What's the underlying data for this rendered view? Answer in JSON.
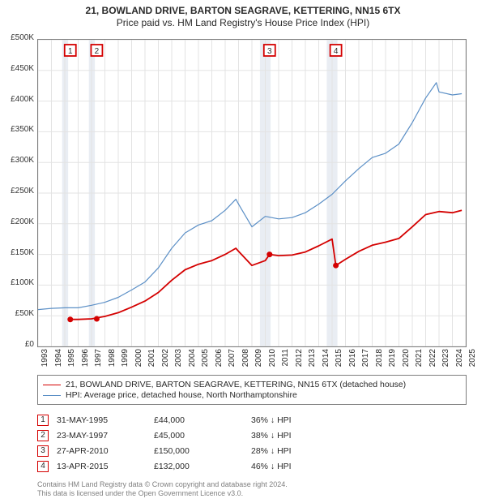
{
  "title": {
    "main": "21, BOWLAND DRIVE, BARTON SEAGRAVE, KETTERING, NN15 6TX",
    "sub": "Price paid vs. HM Land Registry's House Price Index (HPI)"
  },
  "chart": {
    "type": "line",
    "background_color": "#ffffff",
    "grid_color": "#e3e3e3",
    "axis_color": "#7d7d7d",
    "y": {
      "min": 0,
      "max": 500000,
      "step": 50000,
      "currency_symbol": "£",
      "labels": [
        "£0",
        "£50K",
        "£100K",
        "£150K",
        "£200K",
        "£250K",
        "£300K",
        "£350K",
        "£400K",
        "£450K",
        "£500K"
      ]
    },
    "x": {
      "min": 1993,
      "max": 2025,
      "step": 1
    },
    "shade_bands": [
      {
        "from": 1994.8,
        "to": 1995.25,
        "color": "#e9edf3"
      },
      {
        "from": 1996.8,
        "to": 1997.25,
        "color": "#e9edf3"
      },
      {
        "from": 2009.6,
        "to": 2010.4,
        "color": "#e9edf3"
      },
      {
        "from": 2014.6,
        "to": 2015.4,
        "color": "#e9edf3"
      }
    ],
    "series": [
      {
        "id": "hpi",
        "label": "HPI: Average price, detached house, North Northamptonshire",
        "color": "#5b8fc6",
        "line_width": 1.2,
        "points": [
          [
            1993.0,
            60000
          ],
          [
            1994.0,
            62000
          ],
          [
            1995.0,
            63000
          ],
          [
            1996.0,
            63000
          ],
          [
            1997.0,
            67000
          ],
          [
            1998.0,
            72000
          ],
          [
            1999.0,
            80000
          ],
          [
            2000.0,
            92000
          ],
          [
            2001.0,
            105000
          ],
          [
            2002.0,
            128000
          ],
          [
            2003.0,
            160000
          ],
          [
            2004.0,
            185000
          ],
          [
            2005.0,
            198000
          ],
          [
            2006.0,
            205000
          ],
          [
            2007.0,
            222000
          ],
          [
            2007.8,
            240000
          ],
          [
            2008.0,
            232000
          ],
          [
            2009.0,
            195000
          ],
          [
            2010.0,
            212000
          ],
          [
            2011.0,
            208000
          ],
          [
            2012.0,
            210000
          ],
          [
            2013.0,
            218000
          ],
          [
            2014.0,
            232000
          ],
          [
            2015.0,
            248000
          ],
          [
            2016.0,
            270000
          ],
          [
            2017.0,
            290000
          ],
          [
            2018.0,
            308000
          ],
          [
            2019.0,
            315000
          ],
          [
            2020.0,
            330000
          ],
          [
            2021.0,
            365000
          ],
          [
            2022.0,
            405000
          ],
          [
            2022.8,
            430000
          ],
          [
            2023.0,
            415000
          ],
          [
            2024.0,
            410000
          ],
          [
            2024.7,
            412000
          ]
        ]
      },
      {
        "id": "subject",
        "label": "21, BOWLAND DRIVE, BARTON SEAGRAVE, KETTERING, NN15 6TX (detached house)",
        "color": "#d40000",
        "line_width": 1.8,
        "points": [
          [
            1995.41,
            44000
          ],
          [
            1996.0,
            44000
          ],
          [
            1997.0,
            45000
          ],
          [
            1998.0,
            49000
          ],
          [
            1999.0,
            55000
          ],
          [
            2000.0,
            64000
          ],
          [
            2001.0,
            74000
          ],
          [
            2002.0,
            88000
          ],
          [
            2003.0,
            108000
          ],
          [
            2004.0,
            125000
          ],
          [
            2005.0,
            134000
          ],
          [
            2006.0,
            140000
          ],
          [
            2007.0,
            150000
          ],
          [
            2007.8,
            160000
          ],
          [
            2008.0,
            155000
          ],
          [
            2009.0,
            132000
          ],
          [
            2010.0,
            140000
          ],
          [
            2010.32,
            150000
          ],
          [
            2011.0,
            148000
          ],
          [
            2012.0,
            149000
          ],
          [
            2013.0,
            154000
          ],
          [
            2014.0,
            164000
          ],
          [
            2015.0,
            175000
          ],
          [
            2015.28,
            132000
          ],
          [
            2016.0,
            142000
          ],
          [
            2017.0,
            155000
          ],
          [
            2018.0,
            165000
          ],
          [
            2019.0,
            170000
          ],
          [
            2020.0,
            176000
          ],
          [
            2021.0,
            195000
          ],
          [
            2022.0,
            215000
          ],
          [
            2023.0,
            220000
          ],
          [
            2024.0,
            218000
          ],
          [
            2024.7,
            222000
          ]
        ]
      }
    ],
    "sale_markers": [
      {
        "n": 1,
        "year": 1995.41,
        "price": 44000,
        "color": "#d40000"
      },
      {
        "n": 2,
        "year": 1997.39,
        "price": 45000,
        "color": "#d40000"
      },
      {
        "n": 3,
        "year": 2010.32,
        "price": 150000,
        "color": "#d40000"
      },
      {
        "n": 4,
        "year": 2015.28,
        "price": 132000,
        "color": "#d40000"
      }
    ]
  },
  "sales": [
    {
      "n": "1",
      "date": "31-MAY-1995",
      "price": "£44,000",
      "pct": "36% ↓ HPI"
    },
    {
      "n": "2",
      "date": "23-MAY-1997",
      "price": "£45,000",
      "pct": "38% ↓ HPI"
    },
    {
      "n": "3",
      "date": "27-APR-2010",
      "price": "£150,000",
      "pct": "28% ↓ HPI"
    },
    {
      "n": "4",
      "date": "13-APR-2015",
      "price": "£132,000",
      "pct": "46% ↓ HPI"
    }
  ],
  "footer": {
    "l1": "Contains HM Land Registry data © Crown copyright and database right 2024.",
    "l2": "This data is licensed under the Open Government Licence v3.0."
  },
  "style": {
    "marker_border": "#d40000",
    "font_family": "Arial",
    "title_fontsize": 12,
    "axis_fontsize": 10,
    "legend_fontsize": 10.5
  }
}
